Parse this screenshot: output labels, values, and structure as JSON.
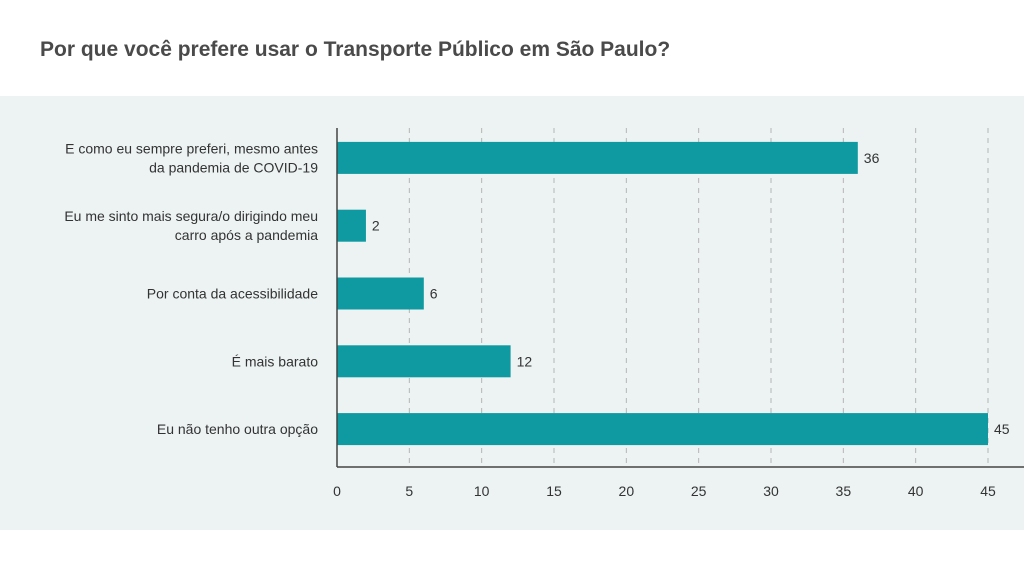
{
  "chart_data": {
    "type": "bar",
    "orientation": "horizontal",
    "title": "Por que você prefere usar o Transporte Público em São Paulo?",
    "categories": [
      [
        "E como eu sempre preferi, mesmo antes",
        "da pandemia de COVID-19"
      ],
      [
        "Eu me sinto mais segura/o dirigindo meu",
        "carro após a pandemia"
      ],
      [
        "Por conta da acessibilidade"
      ],
      [
        "É mais barato"
      ],
      [
        "Eu não tenho outra opção"
      ]
    ],
    "values": [
      36,
      2,
      6,
      12,
      45
    ],
    "xlim": [
      0,
      45
    ],
    "xticks": [
      0,
      5,
      10,
      15,
      20,
      25,
      30,
      35,
      40,
      45
    ],
    "grid": "vertical dashed",
    "bar_color": "#0e9aa0",
    "data_labels": true
  }
}
